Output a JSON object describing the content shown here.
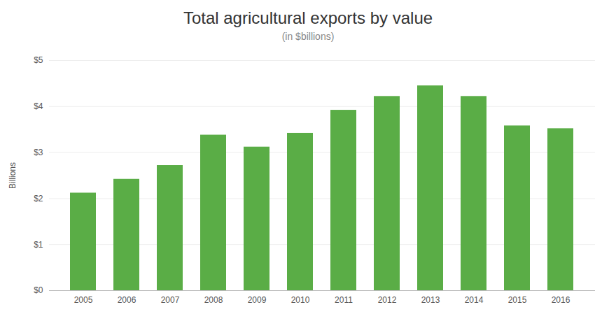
{
  "chart_data": {
    "type": "bar",
    "title": "Total agricultural exports by value",
    "subtitle": "(in $billions)",
    "ylabel": "Billions",
    "categories": [
      "2005",
      "2006",
      "2007",
      "2008",
      "2009",
      "2010",
      "2011",
      "2012",
      "2013",
      "2014",
      "2015",
      "2016"
    ],
    "values": [
      2.12,
      2.42,
      2.72,
      3.38,
      3.12,
      3.42,
      3.92,
      4.22,
      4.45,
      4.22,
      3.58,
      3.52
    ],
    "color": "#5aad46",
    "ylim": [
      0,
      5
    ],
    "yticks": [
      {
        "value": 0,
        "label": "$0"
      },
      {
        "value": 1,
        "label": "$1"
      },
      {
        "value": 2,
        "label": "$2"
      },
      {
        "value": 3,
        "label": "$3"
      },
      {
        "value": 4,
        "label": "$4"
      },
      {
        "value": 5,
        "label": "$5"
      }
    ],
    "grid": true
  }
}
